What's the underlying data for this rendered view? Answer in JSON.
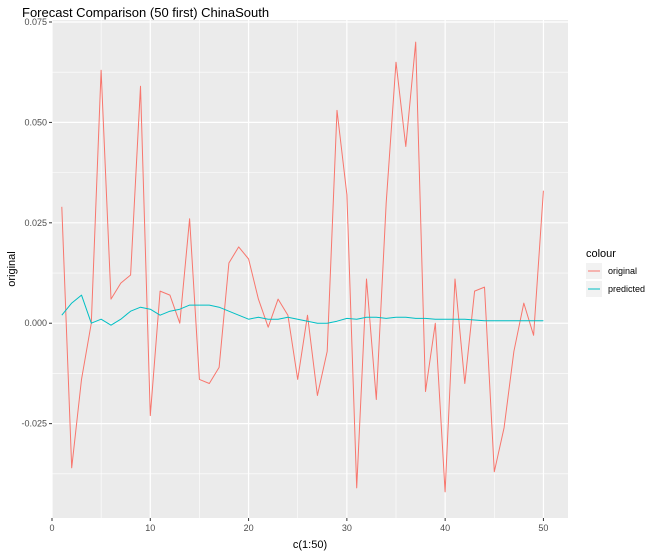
{
  "chart_data": {
    "type": "line",
    "title": "Forecast Comparison (50 first) ChinaSouth",
    "xlabel": "c(1:50)",
    "ylabel": "original",
    "xlim": [
      0,
      52.5
    ],
    "ylim": [
      -0.0485,
      0.0755
    ],
    "x_ticks": [
      0,
      10,
      20,
      30,
      40,
      50
    ],
    "x_tick_labels": [
      "0",
      "10",
      "20",
      "30",
      "40",
      "50"
    ],
    "y_ticks": [
      -0.025,
      0.0,
      0.025,
      0.05,
      0.075
    ],
    "y_tick_labels": [
      "-0.025",
      "0.000",
      "0.025",
      "0.050",
      "0.075"
    ],
    "grid": true,
    "legend": {
      "title": "colour",
      "position": "right"
    },
    "x": [
      1,
      2,
      3,
      4,
      5,
      6,
      7,
      8,
      9,
      10,
      11,
      12,
      13,
      14,
      15,
      16,
      17,
      18,
      19,
      20,
      21,
      22,
      23,
      24,
      25,
      26,
      27,
      28,
      29,
      30,
      31,
      32,
      33,
      34,
      35,
      36,
      37,
      38,
      39,
      40,
      41,
      42,
      43,
      44,
      45,
      46,
      47,
      48,
      49,
      50
    ],
    "series": [
      {
        "name": "original",
        "color": "#F8766D",
        "values": [
          0.029,
          -0.036,
          -0.014,
          0.0,
          0.063,
          0.006,
          0.01,
          0.012,
          0.059,
          -0.023,
          0.008,
          0.007,
          0.0,
          0.026,
          -0.014,
          -0.015,
          -0.011,
          0.015,
          0.019,
          0.016,
          0.006,
          -0.001,
          0.006,
          0.002,
          -0.014,
          0.002,
          -0.018,
          -0.007,
          0.053,
          0.032,
          -0.041,
          0.011,
          -0.019,
          0.03,
          0.065,
          0.044,
          0.07,
          -0.017,
          0.0,
          -0.042,
          0.011,
          -0.015,
          0.008,
          0.009,
          -0.037,
          -0.026,
          -0.007,
          0.005,
          -0.003,
          0.033
        ]
      },
      {
        "name": "predicted",
        "color": "#00BFC4",
        "values": [
          0.002,
          0.005,
          0.007,
          0.0,
          0.001,
          -0.0005,
          0.001,
          0.003,
          0.004,
          0.0035,
          0.002,
          0.003,
          0.0035,
          0.0045,
          0.0045,
          0.0045,
          0.004,
          0.003,
          0.002,
          0.001,
          0.0015,
          0.001,
          0.001,
          0.0015,
          0.001,
          0.0005,
          0.0,
          0.0,
          0.0005,
          0.0012,
          0.001,
          0.0015,
          0.0015,
          0.0012,
          0.0015,
          0.0015,
          0.0012,
          0.0012,
          0.001,
          0.001,
          0.001,
          0.001,
          0.0008,
          0.0006,
          0.0006,
          0.0006,
          0.0006,
          0.0006,
          0.0006,
          0.0006
        ]
      }
    ]
  }
}
